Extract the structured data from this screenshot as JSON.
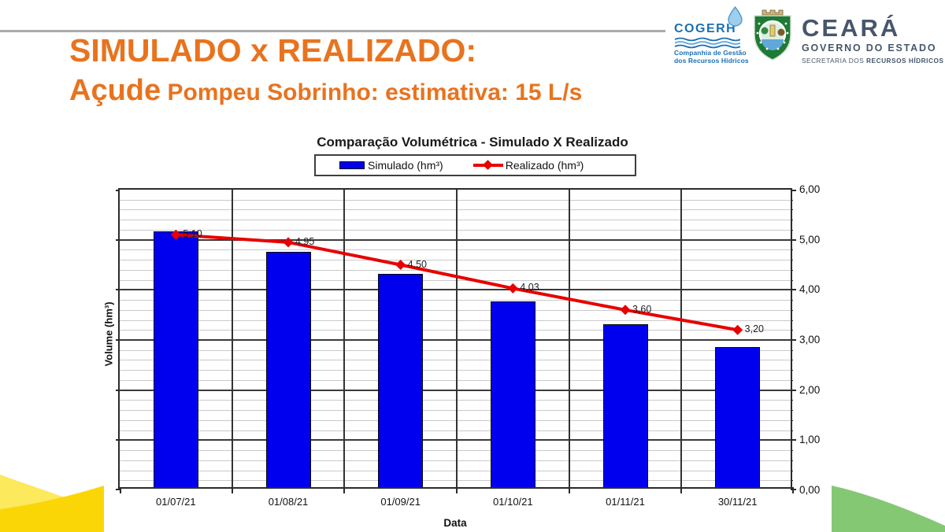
{
  "header": {
    "title_line1": "SIMULADO x REALIZADO:",
    "title_line2_lead": "Açude",
    "title_line2_rest": " Pompeu Sobrinho: estimativa: 15 L/s",
    "title_color": "#E8731F",
    "rule_color": "#ABABAB"
  },
  "logos": {
    "cogerh": {
      "name": "COGERH",
      "subtitle_line1": "Companhia de Gestão",
      "subtitle_line2": "dos Recursos Hídricos",
      "brand_color": "#1B6FB5"
    },
    "ceara": {
      "name": "CEARÁ",
      "line2": "GOVERNO DO ESTADO",
      "line3_regular": "SECRETARIA DOS ",
      "line3_bold": "RECURSOS HÍDRICOS",
      "brand_color": "#46566C"
    }
  },
  "chart_data": {
    "type": "bar",
    "title": "Comparação Volumétrica - Simulado X Realizado",
    "categories": [
      "01/07/21",
      "01/08/21",
      "01/09/21",
      "01/10/21",
      "01/11/21",
      "30/11/21"
    ],
    "series": [
      {
        "name": "Simulado (hm³)",
        "kind": "bar",
        "color": "#0000EE",
        "values": [
          5.1,
          4.7,
          4.25,
          3.7,
          3.25,
          2.8
        ]
      },
      {
        "name": "Realizado (hm³)",
        "kind": "line",
        "color": "#E80000",
        "values": [
          5.1,
          4.95,
          4.5,
          4.03,
          3.6,
          3.2
        ],
        "point_labels": [
          "5,10",
          "4,95",
          "4,50",
          "4,03",
          "3,60",
          "3,20"
        ]
      }
    ],
    "xlabel": "Data",
    "ylabel": "Volume (hm³)",
    "ylim": [
      0,
      6
    ],
    "ytick_step_major": 1,
    "ytick_step_minor": 0.2,
    "ytick_labels": [
      "0,00",
      "1,00",
      "2,00",
      "3,00",
      "4,00",
      "5,00",
      "6,00"
    ],
    "grid": true,
    "legend_position": "top"
  },
  "decor": {
    "yellow_light": "#FCE95C",
    "yellow_dark": "#FBD606",
    "green": "#84C873"
  }
}
